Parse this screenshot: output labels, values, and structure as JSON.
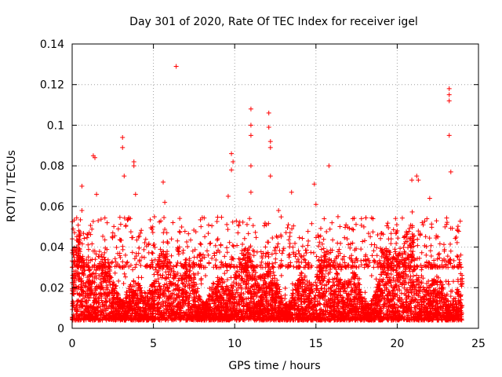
{
  "chart_data": {
    "type": "scatter",
    "title": "Day 301 of 2020, Rate Of TEC Index for receiver igel",
    "xlabel": "GPS time / hours",
    "ylabel": "ROTI / TECUs",
    "xlim": [
      0,
      25
    ],
    "ylim": [
      0,
      0.14
    ],
    "xticks": [
      0,
      5,
      10,
      15,
      20,
      25
    ],
    "xtick_labels": [
      "0",
      "5",
      "10",
      "15",
      "20",
      "25"
    ],
    "yticks": [
      0,
      0.02,
      0.04,
      0.06,
      0.08,
      0.1,
      0.12,
      0.14
    ],
    "ytick_labels": [
      "0",
      "0.02",
      "0.04",
      "0.06",
      "0.08",
      "0.1",
      "0.12",
      "0.14"
    ],
    "grid": true,
    "marker": "plus",
    "color": "#ff0000",
    "series": [
      {
        "name": "ROTI",
        "note": "dense band of points between ~0.003 and ~0.035 spanning 0-24 h; notable outliers listed",
        "outliers": [
          {
            "x": 6.4,
            "y": 0.129
          },
          {
            "x": 23.2,
            "y": 0.118
          },
          {
            "x": 23.2,
            "y": 0.115
          },
          {
            "x": 23.2,
            "y": 0.112
          },
          {
            "x": 11.0,
            "y": 0.108
          },
          {
            "x": 12.1,
            "y": 0.106
          },
          {
            "x": 11.0,
            "y": 0.1
          },
          {
            "x": 12.1,
            "y": 0.099
          },
          {
            "x": 11.0,
            "y": 0.095
          },
          {
            "x": 23.2,
            "y": 0.095
          },
          {
            "x": 3.1,
            "y": 0.094
          },
          {
            "x": 3.1,
            "y": 0.089
          },
          {
            "x": 12.2,
            "y": 0.092
          },
          {
            "x": 12.2,
            "y": 0.089
          },
          {
            "x": 9.8,
            "y": 0.086
          },
          {
            "x": 9.9,
            "y": 0.082
          },
          {
            "x": 9.8,
            "y": 0.078
          },
          {
            "x": 1.3,
            "y": 0.085
          },
          {
            "x": 1.4,
            "y": 0.084
          },
          {
            "x": 3.8,
            "y": 0.082
          },
          {
            "x": 3.8,
            "y": 0.08
          },
          {
            "x": 15.8,
            "y": 0.08
          },
          {
            "x": 11.0,
            "y": 0.08
          },
          {
            "x": 23.3,
            "y": 0.077
          },
          {
            "x": 21.2,
            "y": 0.075
          },
          {
            "x": 12.2,
            "y": 0.075
          },
          {
            "x": 3.2,
            "y": 0.075
          },
          {
            "x": 20.9,
            "y": 0.073
          },
          {
            "x": 21.3,
            "y": 0.073
          },
          {
            "x": 5.6,
            "y": 0.072
          },
          {
            "x": 14.9,
            "y": 0.071
          },
          {
            "x": 0.6,
            "y": 0.07
          },
          {
            "x": 11.0,
            "y": 0.067
          },
          {
            "x": 13.5,
            "y": 0.067
          },
          {
            "x": 3.9,
            "y": 0.066
          },
          {
            "x": 1.5,
            "y": 0.066
          },
          {
            "x": 9.6,
            "y": 0.065
          },
          {
            "x": 22.0,
            "y": 0.064
          },
          {
            "x": 5.7,
            "y": 0.062
          },
          {
            "x": 15.0,
            "y": 0.061
          },
          {
            "x": 0.6,
            "y": 0.058
          },
          {
            "x": 12.7,
            "y": 0.058
          },
          {
            "x": 17.8,
            "y": 0.054
          },
          {
            "x": 1.6,
            "y": 0.053
          },
          {
            "x": 6.2,
            "y": 0.052
          },
          {
            "x": 13.3,
            "y": 0.051
          },
          {
            "x": 2.5,
            "y": 0.047
          },
          {
            "x": 20.0,
            "y": 0.048
          },
          {
            "x": 10.2,
            "y": 0.047
          },
          {
            "x": 18.8,
            "y": 0.046
          },
          {
            "x": 22.5,
            "y": 0.045
          }
        ]
      }
    ]
  }
}
